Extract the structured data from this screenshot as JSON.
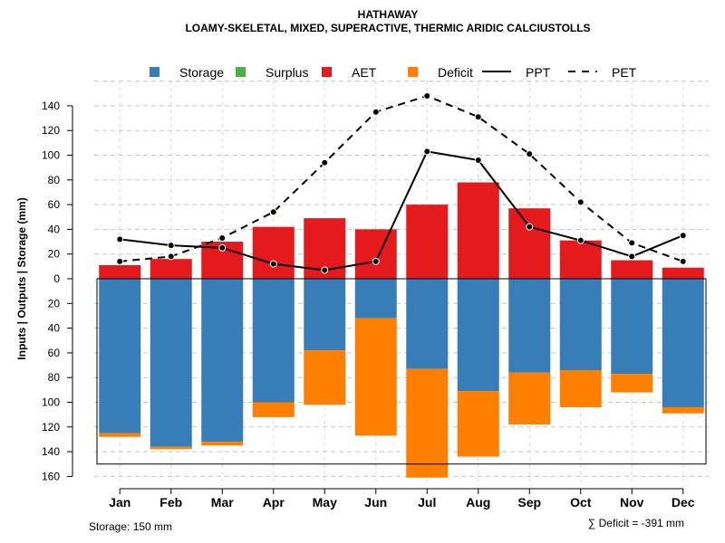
{
  "chart_data": {
    "type": "bar",
    "title": "HATHAWAY",
    "subtitle": "LOAMY-SKELETAL, MIXED, SUPERACTIVE, THERMIC ARIDIC CALCIUSTOLLS",
    "ylabel": "Inputs | Outputs | Storage    (mm)",
    "ylim": [
      -160,
      150
    ],
    "yticks": [
      -160,
      -140,
      -120,
      -100,
      -80,
      -60,
      -40,
      -20,
      0,
      20,
      40,
      60,
      80,
      100,
      120,
      140
    ],
    "ytick_labels": [
      "160",
      "140",
      "120",
      "100",
      "80",
      "60",
      "40",
      "20",
      "0",
      "20",
      "40",
      "60",
      "80",
      "100",
      "120",
      "140"
    ],
    "grid": true,
    "categories": [
      "Jan",
      "Feb",
      "Mar",
      "Apr",
      "May",
      "Jun",
      "Jul",
      "Aug",
      "Sep",
      "Oct",
      "Nov",
      "Dec"
    ],
    "legend": {
      "position": "top",
      "items": [
        {
          "label": "Storage",
          "kind": "box",
          "color": "#377eb8"
        },
        {
          "label": "Surplus",
          "kind": "box",
          "color": "#4daf4a"
        },
        {
          "label": "AET",
          "kind": "box",
          "color": "#e41a1c"
        },
        {
          "label": "Deficit",
          "kind": "box",
          "color": "#ff7f00"
        },
        {
          "label": "PPT",
          "kind": "solid",
          "color": "#000000"
        },
        {
          "label": "PET",
          "kind": "dashed",
          "color": "#000000"
        }
      ]
    },
    "series": [
      {
        "name": "AET",
        "color": "#e41a1c",
        "values": [
          11,
          16,
          30,
          42,
          49,
          40,
          60,
          78,
          57,
          31,
          15,
          9
        ]
      },
      {
        "name": "Storage",
        "color": "#377eb8",
        "values": [
          125,
          136,
          132,
          100,
          58,
          32,
          73,
          91,
          76,
          74,
          77,
          104
        ]
      },
      {
        "name": "Deficit",
        "color": "#ff7f00",
        "values": [
          -3,
          -2,
          -3,
          -12,
          -44,
          -95,
          -88,
          -53,
          -42,
          -30,
          -15,
          -5
        ]
      },
      {
        "name": "Surplus",
        "color": "#4daf4a",
        "values": [
          0,
          0,
          0,
          0,
          0,
          0,
          0,
          0,
          0,
          0,
          0,
          0
        ]
      },
      {
        "name": "PPT",
        "color": "#000000",
        "values": [
          32,
          27,
          25,
          12,
          7,
          14,
          103,
          96,
          42,
          31,
          18,
          35
        ]
      },
      {
        "name": "PET",
        "color": "#000000",
        "values": [
          14,
          18,
          33,
          54,
          94,
          135,
          148,
          131,
          101,
          62,
          29,
          14
        ]
      }
    ],
    "storage_capacity": 150,
    "footer_left": "Storage: 150 mm",
    "footer_right": "∑ Deficit = -391 mm"
  }
}
